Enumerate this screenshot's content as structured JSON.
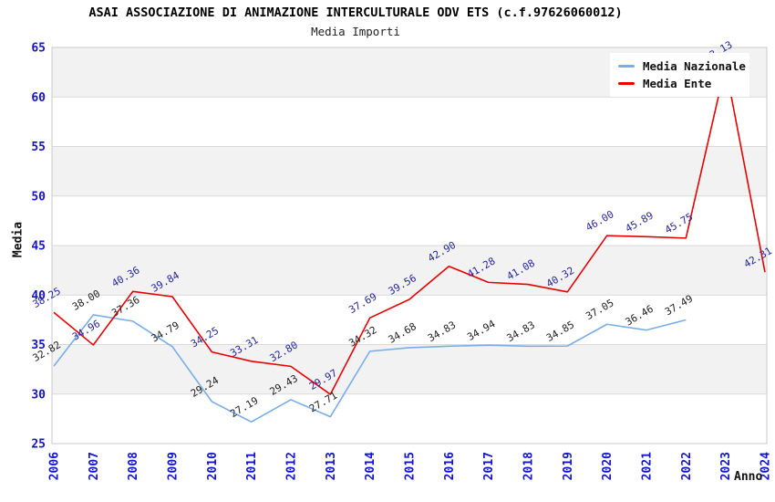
{
  "chart_data": {
    "type": "line",
    "title": "ASAI ASSOCIAZIONE DI ANIMAZIONE INTERCULTURALE ODV ETS (c.f.97626060012)",
    "subtitle": "Media Importi",
    "xlabel": "Anno",
    "ylabel": "Media",
    "ylim": [
      25,
      65
    ],
    "ytick_step": 5,
    "grid": true,
    "legend_position": "top-right",
    "categories": [
      "2006",
      "2007",
      "2008",
      "2009",
      "2010",
      "2011",
      "2012",
      "2013",
      "2014",
      "2015",
      "2016",
      "2017",
      "2018",
      "2019",
      "2020",
      "2021",
      "2022",
      "2023",
      "2024"
    ],
    "series": [
      {
        "name": "Media Nazionale",
        "color": "#7aade8",
        "label_color": "#222222",
        "values": [
          32.82,
          38.0,
          37.36,
          34.79,
          29.24,
          27.19,
          29.43,
          27.71,
          34.32,
          34.68,
          34.83,
          34.94,
          34.83,
          34.85,
          37.05,
          36.46,
          37.49,
          null,
          null
        ]
      },
      {
        "name": "Media Ente",
        "color": "#e60000",
        "label_color": "#26269c",
        "values": [
          38.25,
          34.96,
          40.36,
          39.84,
          34.25,
          33.31,
          32.8,
          29.97,
          37.69,
          39.56,
          42.9,
          41.28,
          41.08,
          40.32,
          46.0,
          45.89,
          45.75,
          63.13,
          42.31
        ]
      }
    ]
  },
  "colors": {
    "tick_label": "#1414cd",
    "grid": "#d9d9d9",
    "plot_border": "#c9c9c9",
    "band_gray": "#f2f2f2",
    "background": "#ffffff"
  }
}
